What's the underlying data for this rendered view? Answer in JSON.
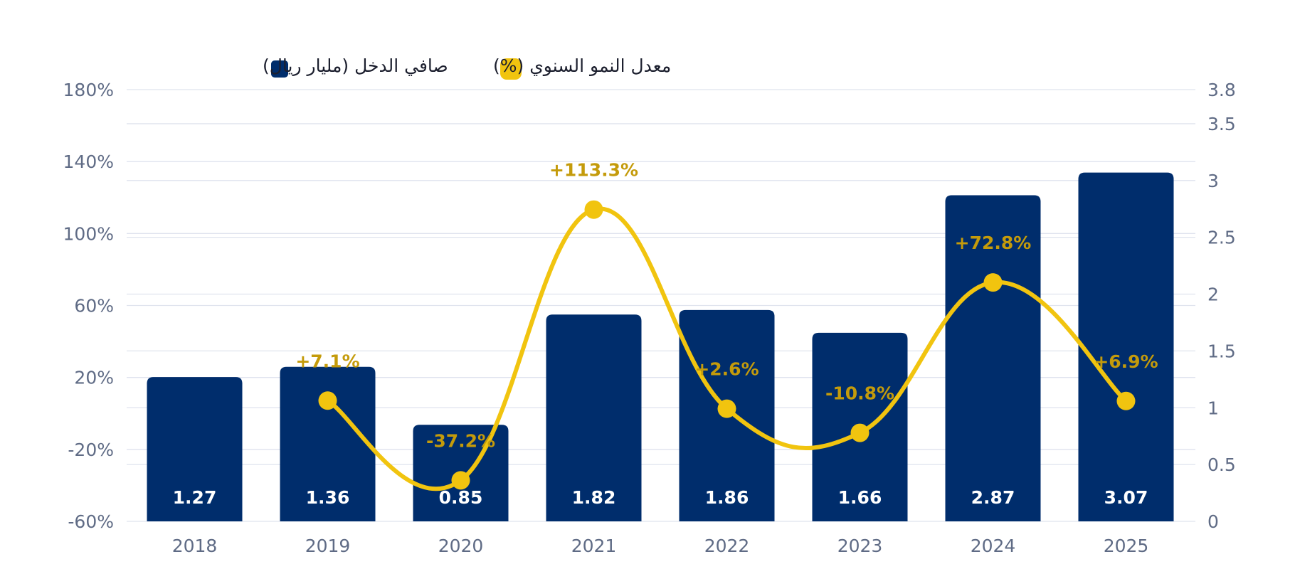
{
  "legend": {
    "bars_label": "صافي الدخل (مليار ريال)",
    "line_label": "معدل النمو السنوي (%)"
  },
  "colors": {
    "bar": "#002d6c",
    "line": "#f1c40f",
    "growth_text": "#c49b0b",
    "grid": "#dfe3ee",
    "tick_text": "#5f6b85",
    "bar_label": "#ffffff"
  },
  "chart_data": {
    "type": "bar",
    "categories": [
      "2018",
      "2019",
      "2020",
      "2021",
      "2022",
      "2023",
      "2024",
      "2025"
    ],
    "series": [
      {
        "name": "صافي الدخل (مليار ريال)",
        "type": "bar",
        "axis": "right",
        "values": [
          1.27,
          1.36,
          0.85,
          1.82,
          1.86,
          1.66,
          2.87,
          3.07
        ],
        "labels": [
          "1.27",
          "1.36",
          "0.85",
          "1.82",
          "1.86",
          "1.66",
          "2.87",
          "3.07"
        ]
      },
      {
        "name": "معدل النمو السنوي (%)",
        "type": "line",
        "axis": "left",
        "values": [
          null,
          7.1,
          -37.2,
          113.3,
          2.6,
          -10.8,
          72.8,
          6.9
        ],
        "labels": [
          "",
          "+7.1%",
          "-37.2%",
          "+113.3%",
          "+2.6%",
          "-10.8%",
          "+72.8%",
          "+6.9%"
        ]
      }
    ],
    "left_axis": {
      "range": [
        -60,
        180
      ],
      "ticks": [
        -60,
        -20,
        20,
        60,
        100,
        140,
        180
      ],
      "tick_labels": [
        "-60%",
        "-20%",
        "20%",
        "60%",
        "100%",
        "140%",
        "180%"
      ]
    },
    "right_axis": {
      "range": [
        0,
        3.8
      ],
      "ticks": [
        0,
        0.5,
        1,
        1.5,
        2,
        2.5,
        3,
        3.5,
        3.8
      ],
      "tick_labels": [
        "0",
        "0.5",
        "1",
        "1.5",
        "2",
        "2.5",
        "3",
        "3.5",
        "3.8"
      ]
    },
    "grid": true,
    "legend_position": "top-left"
  }
}
